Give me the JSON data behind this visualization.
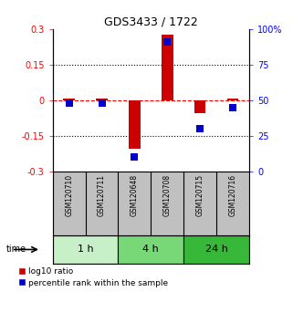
{
  "title": "GDS3433 / 1722",
  "samples": [
    "GSM120710",
    "GSM120711",
    "GSM120648",
    "GSM120708",
    "GSM120715",
    "GSM120716"
  ],
  "log10_ratio": [
    0.005,
    0.005,
    -0.205,
    0.275,
    -0.055,
    0.005
  ],
  "percentile_rank": [
    48,
    48,
    10,
    91,
    30,
    45
  ],
  "ylim_left": [
    -0.3,
    0.3
  ],
  "ylim_right": [
    0,
    100
  ],
  "yticks_left": [
    -0.3,
    -0.15,
    0,
    0.15,
    0.3
  ],
  "yticks_right": [
    0,
    25,
    50,
    75,
    100
  ],
  "ytick_labels_right": [
    "0",
    "25",
    "50",
    "75",
    "100%"
  ],
  "dotted_line_y": [
    0.15,
    -0.15
  ],
  "time_groups": [
    {
      "label": "1 h",
      "start": 0,
      "end": 2,
      "color": "#c8f0c8"
    },
    {
      "label": "4 h",
      "start": 2,
      "end": 4,
      "color": "#78d878"
    },
    {
      "label": "24 h",
      "start": 4,
      "end": 6,
      "color": "#38b838"
    }
  ],
  "bar_color": "#cc0000",
  "dot_color": "#0000cc",
  "bar_width": 0.35,
  "dot_size": 35,
  "background_sample": "#c0c0c0",
  "legend_red_label": "log10 ratio",
  "legend_blue_label": "percentile rank within the sample",
  "time_label": "time"
}
